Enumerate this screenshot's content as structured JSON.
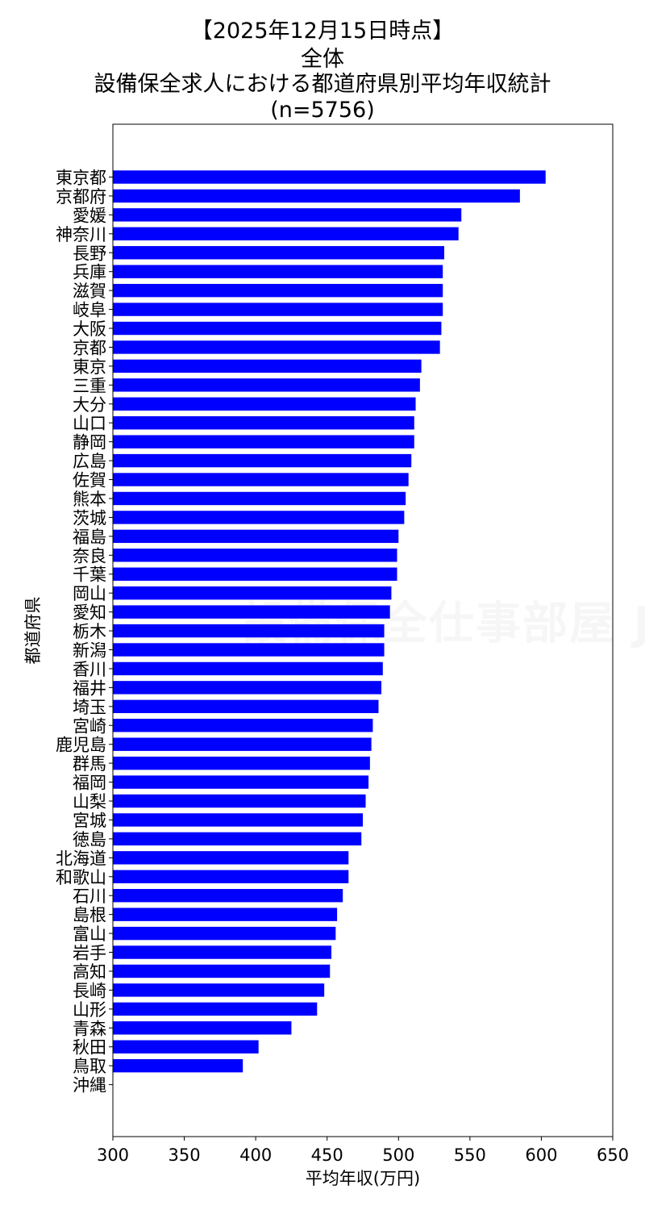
{
  "chart_data": {
    "type": "bar",
    "orientation": "horizontal",
    "title_lines": [
      "【2025年12月15日時点】",
      "全体",
      "設備保全求人における都道府県別平均年収統計",
      "(n=5756)"
    ],
    "xlabel": "平均年収(万円)",
    "ylabel": "都道府県",
    "xlim": [
      300,
      650
    ],
    "xticks": [
      300,
      350,
      400,
      450,
      500,
      550,
      600,
      650
    ],
    "bar_color": "#0000ff",
    "grid": false,
    "categories": [
      "東京都",
      "京都府",
      "愛媛",
      "神奈川",
      "長野",
      "兵庫",
      "滋賀",
      "岐阜",
      "大阪",
      "京都",
      "東京",
      "三重",
      "大分",
      "山口",
      "静岡",
      "広島",
      "佐賀",
      "熊本",
      "茨城",
      "福島",
      "奈良",
      "千葉",
      "岡山",
      "愛知",
      "栃木",
      "新潟",
      "香川",
      "福井",
      "埼玉",
      "宮崎",
      "鹿児島",
      "群馬",
      "福岡",
      "山梨",
      "宮城",
      "徳島",
      "北海道",
      "和歌山",
      "石川",
      "島根",
      "富山",
      "岩手",
      "高知",
      "長崎",
      "山形",
      "青森",
      "秋田",
      "鳥取",
      "沖縄"
    ],
    "values": [
      603,
      585,
      544,
      542,
      532,
      531,
      531,
      531,
      530,
      529,
      516,
      515,
      512,
      511,
      511,
      509,
      507,
      505,
      504,
      500,
      499,
      499,
      495,
      494,
      490,
      490,
      489,
      488,
      486,
      482,
      481,
      480,
      479,
      477,
      475,
      474,
      465,
      465,
      461,
      457,
      456,
      453,
      452,
      448,
      443,
      425,
      402,
      391,
      null
    ]
  },
  "watermark": "設備保全仕事部屋 Job"
}
